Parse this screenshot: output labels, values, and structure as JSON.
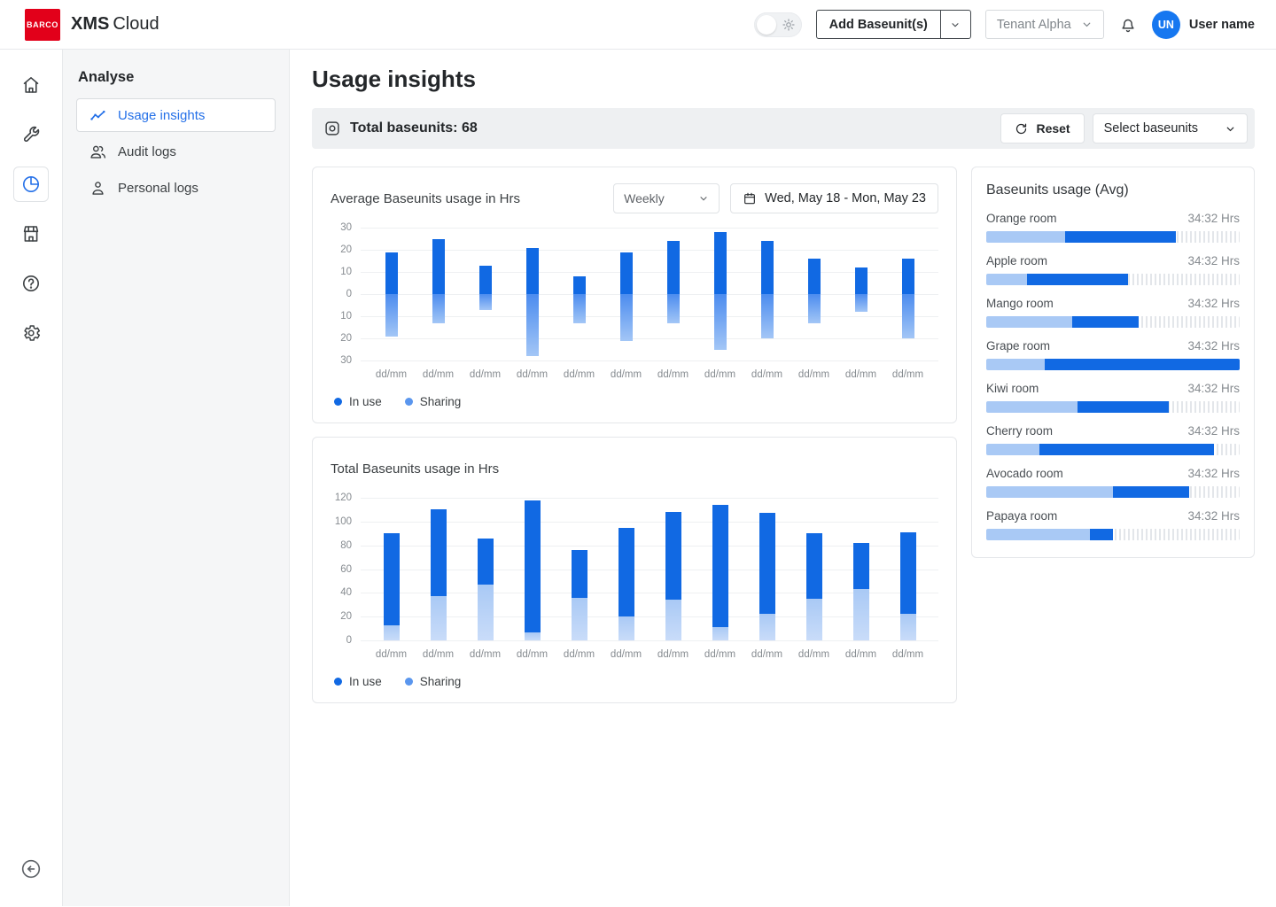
{
  "colors": {
    "brand_red": "#e2001a",
    "primary_blue": "#1169e3",
    "sharing_blue": "#5a96ee",
    "pale_blue": "#a9c9f5",
    "link_blue": "#2470e8",
    "avatar_blue": "#1677f0"
  },
  "header": {
    "logo_text": "BARCO",
    "app_name_bold": "XMS",
    "app_name_regular": "Cloud",
    "add_baseunits_button": "Add Baseunit(s)",
    "tenant_selector": "Tenant Alpha",
    "user_initials": "UN",
    "user_name": "User name"
  },
  "sidebar": {
    "heading": "Analyse",
    "items": [
      {
        "label": "Usage insights",
        "active": true
      },
      {
        "label": "Audit logs",
        "active": false
      },
      {
        "label": "Personal logs",
        "active": false
      }
    ]
  },
  "main": {
    "page_title": "Usage insights",
    "summary_bar": {
      "label": "Total baseunits: 68",
      "reset_button": "Reset",
      "select_dropdown": "Select baseunits"
    }
  },
  "chart_data": [
    {
      "type": "bar",
      "variant": "diverging",
      "title": "Average Baseunits usage in Hrs",
      "period_selector": "Weekly",
      "date_range": "Wed, May 18 - Mon, May 23",
      "categories": [
        "dd/mm",
        "dd/mm",
        "dd/mm",
        "dd/mm",
        "dd/mm",
        "dd/mm",
        "dd/mm",
        "dd/mm",
        "dd/mm",
        "dd/mm",
        "dd/mm",
        "dd/mm"
      ],
      "series": [
        {
          "name": "In use",
          "color": "#1169e3",
          "direction": "up",
          "values": [
            19,
            25,
            13,
            21,
            8,
            19,
            24,
            28,
            24,
            16,
            12,
            16
          ]
        },
        {
          "name": "Sharing",
          "color": "#5a96ee",
          "direction": "down",
          "values": [
            19,
            13,
            7,
            28,
            13,
            21,
            13,
            25,
            20,
            13,
            8,
            20
          ]
        }
      ],
      "ylim": [
        -30,
        30
      ],
      "ytick_labels": [
        "30",
        "20",
        "10",
        "0",
        "10",
        "20",
        "30"
      ],
      "grid": true,
      "legend_position": "bottom-left"
    },
    {
      "type": "bar",
      "variant": "stacked",
      "title": "Total Baseunits usage in Hrs",
      "categories": [
        "dd/mm",
        "dd/mm",
        "dd/mm",
        "dd/mm",
        "dd/mm",
        "dd/mm",
        "dd/mm",
        "dd/mm",
        "dd/mm",
        "dd/mm",
        "dd/mm",
        "dd/mm"
      ],
      "series": [
        {
          "name": "In use",
          "color": "#1169e3",
          "values": [
            77,
            73,
            39,
            111,
            40,
            75,
            74,
            103,
            85,
            55,
            39,
            69
          ]
        },
        {
          "name": "Sharing",
          "color": "#a9c9f5",
          "legend_color": "#5a96ee",
          "values": [
            13,
            37,
            47,
            7,
            36,
            20,
            34,
            11,
            22,
            35,
            43,
            22
          ]
        }
      ],
      "ylim": [
        0,
        120
      ],
      "ytick_labels": [
        "120",
        "100",
        "80",
        "60",
        "40",
        "20",
        "0"
      ],
      "grid": true,
      "legend_position": "bottom-left"
    }
  ],
  "right_panel": {
    "title": "Baseunits usage (Avg)",
    "rooms": [
      {
        "name": "Orange room",
        "value": "34:32 Hrs",
        "sharing_pct": 31,
        "inuse_pct": 44
      },
      {
        "name": "Apple room",
        "value": "34:32 Hrs",
        "sharing_pct": 16,
        "inuse_pct": 40
      },
      {
        "name": "Mango room",
        "value": "34:32 Hrs",
        "sharing_pct": 34,
        "inuse_pct": 26
      },
      {
        "name": "Grape room",
        "value": "34:32 Hrs",
        "sharing_pct": 23,
        "inuse_pct": 77
      },
      {
        "name": "Kiwi room",
        "value": "34:32 Hrs",
        "sharing_pct": 36,
        "inuse_pct": 36
      },
      {
        "name": "Cherry room",
        "value": "34:32 Hrs",
        "sharing_pct": 21,
        "inuse_pct": 69
      },
      {
        "name": "Avocado room",
        "value": "34:32 Hrs",
        "sharing_pct": 50,
        "inuse_pct": 30
      },
      {
        "name": "Papaya room",
        "value": "34:32 Hrs",
        "sharing_pct": 41,
        "inuse_pct": 9
      }
    ]
  }
}
